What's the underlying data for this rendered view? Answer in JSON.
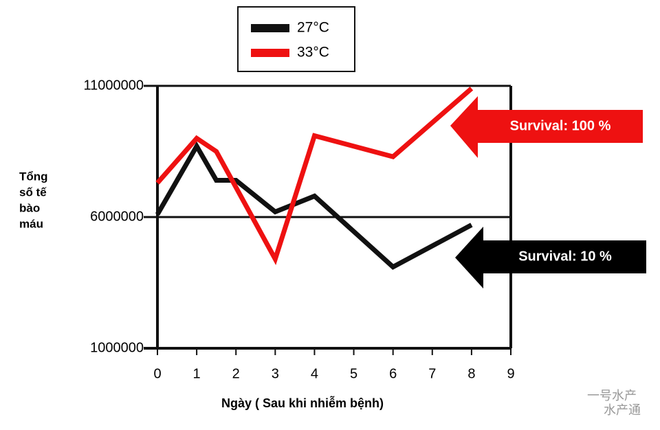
{
  "chart_data": {
    "type": "line",
    "ylabel": [
      "Tổng",
      "số tế",
      "bào",
      "máu"
    ],
    "xlabel": "Ngày ( Sau khi nhiễm bệnh)",
    "xlim": [
      0,
      9
    ],
    "xticks": [
      0,
      1,
      2,
      3,
      4,
      5,
      6,
      7,
      8,
      9
    ],
    "ylim": [
      1000000,
      11000000
    ],
    "yticks": [
      1000000,
      6000000,
      11000000
    ],
    "series": [
      {
        "name": "27°C",
        "color": "#111111",
        "x": [
          0,
          1,
          1.5,
          2,
          3,
          4,
          6,
          8
        ],
        "values": [
          6100000,
          8700000,
          7400000,
          7400000,
          6200000,
          6800000,
          4100000,
          5700000
        ]
      },
      {
        "name": "33°C",
        "color": "#ee1111",
        "x": [
          0,
          1,
          1.5,
          3,
          4,
          6,
          8
        ],
        "values": [
          7300000,
          9000000,
          8500000,
          4400000,
          9100000,
          8300000,
          10900000
        ]
      }
    ],
    "annotations": [
      "Survival: 100 %",
      "Survival: 10 %"
    ],
    "watermark": [
      "一号水产",
      "水产通"
    ]
  }
}
